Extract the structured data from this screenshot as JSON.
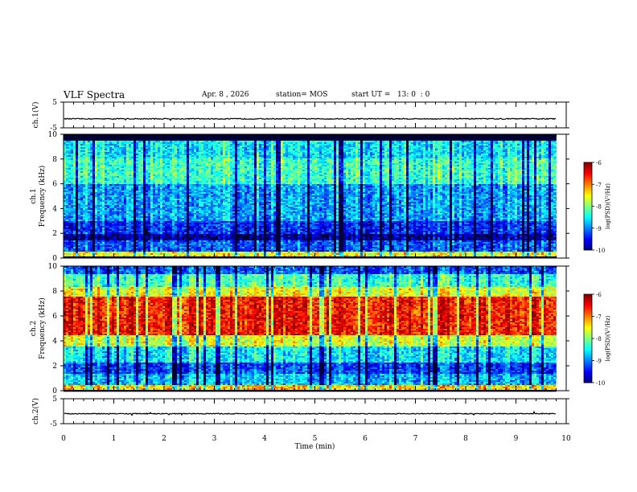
{
  "header": {
    "title": "VLF Spectra",
    "date": "Apr. 8 , 2026",
    "station": "station= MOS",
    "start": "start UT =   13: 0  : 0"
  },
  "chart_data": [
    {
      "type": "line",
      "name": "ch1-waveform",
      "ylabel": "ch.1(V)",
      "ylim": [
        -5,
        5
      ],
      "yticks": [
        "5",
        "-5"
      ],
      "baseline": -1.5,
      "xlim": [
        0,
        10
      ]
    },
    {
      "type": "heatmap",
      "name": "ch1-spectrogram",
      "ylabel": "ch.1\nFrequency (kHz)",
      "ylim": [
        0,
        10
      ],
      "yticks": [
        "0",
        "2",
        "4",
        "6",
        "8",
        "10"
      ],
      "xlim": [
        0,
        9.8
      ],
      "colorbar": {
        "label": "log(PSD)(V²/Hz)",
        "range": [
          -10,
          -6
        ],
        "ticks": [
          "-6",
          "-7",
          "-8",
          "-9",
          "-10"
        ]
      },
      "bands": [
        {
          "from": 9.5,
          "to": 10.0,
          "level": -10
        },
        {
          "from": 8.0,
          "to": 9.5,
          "level": -8.6
        },
        {
          "from": 6.0,
          "to": 8.0,
          "level": -8.3
        },
        {
          "from": 3.0,
          "to": 6.0,
          "level": -8.9
        },
        {
          "from": 1.9,
          "to": 3.0,
          "level": -9.4
        },
        {
          "from": 1.4,
          "to": 1.9,
          "level": -9.9
        },
        {
          "from": 0.5,
          "to": 1.4,
          "level": -9.2
        },
        {
          "from": 0.1,
          "to": 0.5,
          "level": -7.6
        },
        {
          "from": 0.0,
          "to": 0.1,
          "level": -10
        }
      ]
    },
    {
      "type": "heatmap",
      "name": "ch2-spectrogram",
      "ylabel": "ch.2\nFrequency (kHz)",
      "ylim": [
        0,
        10
      ],
      "yticks": [
        "0",
        "2",
        "4",
        "6",
        "8",
        "10"
      ],
      "xlim": [
        0,
        9.8
      ],
      "colorbar": {
        "label": "log(PSD)(V²/Hz)",
        "range": [
          -10,
          -6
        ],
        "ticks": [
          "-6",
          "-7",
          "-8",
          "-9",
          "-10"
        ]
      },
      "bands": [
        {
          "from": 9.3,
          "to": 10.0,
          "level": -9.2
        },
        {
          "from": 8.3,
          "to": 9.3,
          "level": -8.3
        },
        {
          "from": 7.6,
          "to": 8.3,
          "level": -7.6
        },
        {
          "from": 4.5,
          "to": 7.6,
          "level": -6.6
        },
        {
          "from": 3.5,
          "to": 4.5,
          "level": -7.7
        },
        {
          "from": 2.2,
          "to": 3.5,
          "level": -8.6
        },
        {
          "from": 1.4,
          "to": 2.2,
          "level": -9.3
        },
        {
          "from": 0.4,
          "to": 1.4,
          "level": -8.8
        },
        {
          "from": 0.1,
          "to": 0.4,
          "level": -7.4
        },
        {
          "from": 0.0,
          "to": 0.1,
          "level": -10
        }
      ]
    },
    {
      "type": "line",
      "name": "ch2-waveform",
      "ylabel": "ch.2(V)",
      "ylim": [
        -5,
        5
      ],
      "yticks": [
        "5",
        "-5"
      ],
      "baseline": -1.0,
      "xlim": [
        0,
        10
      ]
    }
  ],
  "xaxis": {
    "label": "Time (min)",
    "range": [
      0,
      10
    ],
    "ticks": [
      "0",
      "1",
      "2",
      "3",
      "4",
      "5",
      "6",
      "7",
      "8",
      "9",
      "10"
    ]
  }
}
